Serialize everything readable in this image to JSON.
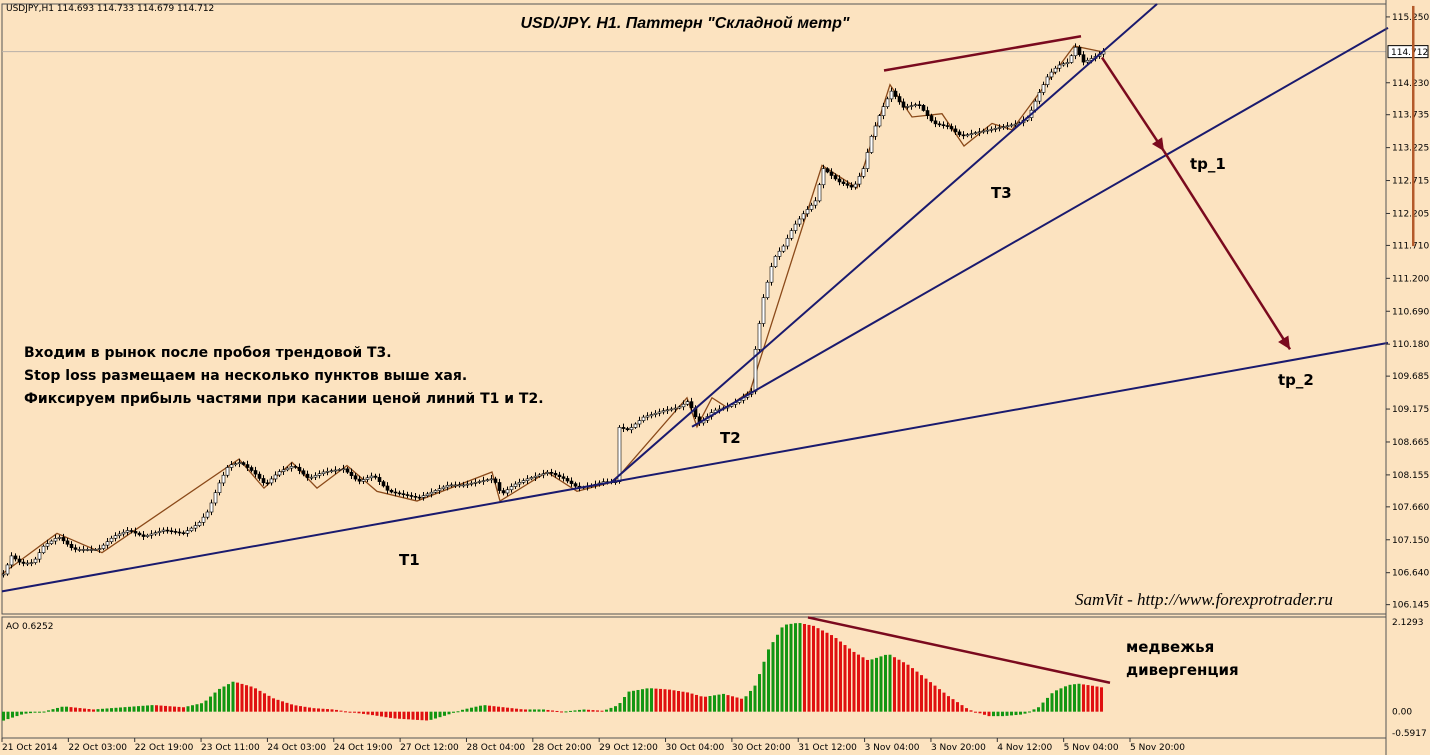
{
  "chart_data": {
    "type": "candlestick",
    "symbol_info": "USDJPY,H1  114.693 114.733 114.679 114.712",
    "title": "USD/JPY. H1. Паттерн \"Складной метр\"",
    "current_price": "114.712",
    "price_axis_labels": [
      "115.250",
      "114.230",
      "113.735",
      "113.225",
      "112.715",
      "112.205",
      "111.710",
      "111.200",
      "110.690",
      "110.180",
      "109.685",
      "109.175",
      "108.665",
      "108.155",
      "107.660",
      "107.150",
      "106.640",
      "106.145"
    ],
    "price_range": [
      106.0,
      115.45
    ],
    "time_axis_labels": [
      "21 Oct 2014",
      "22 Oct 03:00",
      "22 Oct 19:00",
      "23 Oct 11:00",
      "24 Oct 03:00",
      "24 Oct 19:00",
      "27 Oct 12:00",
      "28 Oct 04:00",
      "28 Oct 20:00",
      "29 Oct 12:00",
      "30 Oct 04:00",
      "30 Oct 20:00",
      "31 Oct 12:00",
      "3 Nov 04:00",
      "3 Nov 20:00",
      "4 Nov 12:00",
      "5 Nov 04:00",
      "5 Nov 20:00"
    ],
    "price_path": [
      [
        0,
        106.62
      ],
      [
        8,
        106.9
      ],
      [
        18,
        106.78
      ],
      [
        30,
        106.8
      ],
      [
        40,
        107.05
      ],
      [
        55,
        107.2
      ],
      [
        70,
        107.0
      ],
      [
        95,
        107.0
      ],
      [
        110,
        107.2
      ],
      [
        125,
        107.3
      ],
      [
        140,
        107.2
      ],
      [
        160,
        107.3
      ],
      [
        180,
        107.25
      ],
      [
        195,
        107.4
      ],
      [
        205,
        107.6
      ],
      [
        215,
        108.0
      ],
      [
        225,
        108.3
      ],
      [
        237,
        108.35
      ],
      [
        250,
        108.2
      ],
      [
        262,
        108.0
      ],
      [
        275,
        108.2
      ],
      [
        290,
        108.3
      ],
      [
        305,
        108.1
      ],
      [
        320,
        108.2
      ],
      [
        340,
        108.25
      ],
      [
        355,
        108.05
      ],
      [
        370,
        108.15
      ],
      [
        385,
        107.9
      ],
      [
        400,
        107.85
      ],
      [
        415,
        107.8
      ],
      [
        430,
        107.9
      ],
      [
        445,
        108.0
      ],
      [
        460,
        108.0
      ],
      [
        475,
        108.05
      ],
      [
        490,
        108.1
      ],
      [
        498,
        107.85
      ],
      [
        510,
        108.0
      ],
      [
        525,
        108.1
      ],
      [
        545,
        108.2
      ],
      [
        560,
        108.1
      ],
      [
        575,
        107.95
      ],
      [
        590,
        108.0
      ],
      [
        600,
        108.05
      ],
      [
        612,
        108.05
      ],
      [
        614,
        108.9
      ],
      [
        625,
        108.85
      ],
      [
        640,
        109.05
      ],
      [
        660,
        109.15
      ],
      [
        675,
        109.2
      ],
      [
        685,
        109.3
      ],
      [
        695,
        108.95
      ],
      [
        700,
        109.0
      ],
      [
        710,
        109.15
      ],
      [
        722,
        109.2
      ],
      [
        735,
        109.3
      ],
      [
        748,
        109.45
      ],
      [
        752,
        110.1
      ],
      [
        760,
        110.9
      ],
      [
        770,
        111.5
      ],
      [
        780,
        111.7
      ],
      [
        790,
        112.0
      ],
      [
        800,
        112.2
      ],
      [
        812,
        112.4
      ],
      [
        820,
        112.9
      ],
      [
        835,
        112.7
      ],
      [
        850,
        112.6
      ],
      [
        860,
        112.9
      ],
      [
        868,
        113.4
      ],
      [
        878,
        113.8
      ],
      [
        888,
        114.1
      ],
      [
        900,
        113.85
      ],
      [
        915,
        113.9
      ],
      [
        930,
        113.6
      ],
      [
        945,
        113.55
      ],
      [
        958,
        113.4
      ],
      [
        970,
        113.45
      ],
      [
        985,
        113.5
      ],
      [
        1000,
        113.55
      ],
      [
        1015,
        113.6
      ],
      [
        1025,
        113.7
      ],
      [
        1035,
        114.05
      ],
      [
        1045,
        114.35
      ],
      [
        1055,
        114.5
      ],
      [
        1065,
        114.55
      ],
      [
        1072,
        114.78
      ],
      [
        1080,
        114.55
      ],
      [
        1090,
        114.62
      ],
      [
        1100,
        114.71
      ]
    ],
    "zigzag": [
      [
        0,
        106.62
      ],
      [
        55,
        107.25
      ],
      [
        100,
        106.95
      ],
      [
        237,
        108.4
      ],
      [
        262,
        107.95
      ],
      [
        290,
        108.35
      ],
      [
        315,
        107.95
      ],
      [
        345,
        108.3
      ],
      [
        375,
        107.9
      ],
      [
        415,
        107.75
      ],
      [
        490,
        108.2
      ],
      [
        498,
        107.75
      ],
      [
        545,
        108.2
      ],
      [
        575,
        107.9
      ],
      [
        612,
        108.05
      ],
      [
        685,
        109.35
      ],
      [
        695,
        108.9
      ],
      [
        710,
        109.35
      ],
      [
        725,
        109.2
      ],
      [
        748,
        109.45
      ],
      [
        820,
        112.95
      ],
      [
        855,
        112.6
      ],
      [
        888,
        114.2
      ],
      [
        910,
        113.7
      ],
      [
        940,
        113.75
      ],
      [
        962,
        113.25
      ],
      [
        990,
        113.6
      ],
      [
        1010,
        113.5
      ],
      [
        1072,
        114.8
      ],
      [
        1100,
        114.71
      ]
    ],
    "trend_lines": {
      "T1": [
        [
          0,
          106.35
        ],
        [
          1386,
          110.2
        ]
      ],
      "T2": [
        [
          610,
          108.05
        ],
        [
          1155,
          115.45
        ]
      ],
      "T3": [
        [
          690,
          108.9
        ],
        [
          1386,
          115.08
        ]
      ],
      "resistance": [
        [
          882,
          114.42
        ],
        [
          1079,
          114.95
        ]
      ]
    },
    "arrows": [
      [
        [
          1100,
          114.62
        ],
        [
          1162,
          113.17
        ]
      ],
      [
        [
          1162,
          113.17
        ],
        [
          1288,
          110.1
        ]
      ]
    ],
    "labels": {
      "t1": "T1",
      "t2": "T2",
      "t3": "T3",
      "tp1": "tp_1",
      "tp2": "tp_2"
    },
    "notes": [
      "Входим в рынок после пробоя трендовой Т3.",
      "Stop loss размещаем на несколько пунктов выше хая.",
      "Фиксируем прибыль частями при касании ценой линий Т1 и Т2."
    ],
    "signature": "SamVit - http://www.forexprotrader.ru",
    "indicator": {
      "name": "AO 0.6252",
      "axis_labels": [
        "2.1293",
        "0.00",
        "-0.5917"
      ],
      "range": [
        -0.5917,
        2.1293
      ],
      "profile": [
        [
          0,
          -0.2
        ],
        [
          20,
          -0.05
        ],
        [
          40,
          0.0
        ],
        [
          60,
          0.12
        ],
        [
          90,
          0.05
        ],
        [
          120,
          0.1
        ],
        [
          150,
          0.15
        ],
        [
          180,
          0.1
        ],
        [
          200,
          0.2
        ],
        [
          215,
          0.5
        ],
        [
          230,
          0.68
        ],
        [
          250,
          0.55
        ],
        [
          270,
          0.3
        ],
        [
          290,
          0.15
        ],
        [
          310,
          0.08
        ],
        [
          330,
          0.05
        ],
        [
          350,
          -0.02
        ],
        [
          370,
          -0.08
        ],
        [
          390,
          -0.15
        ],
        [
          410,
          -0.18
        ],
        [
          425,
          -0.2
        ],
        [
          440,
          -0.1
        ],
        [
          460,
          0.05
        ],
        [
          480,
          0.15
        ],
        [
          500,
          0.1
        ],
        [
          520,
          0.05
        ],
        [
          540,
          0.05
        ],
        [
          560,
          0.0
        ],
        [
          580,
          0.05
        ],
        [
          600,
          0.02
        ],
        [
          615,
          0.15
        ],
        [
          625,
          0.45
        ],
        [
          645,
          0.53
        ],
        [
          665,
          0.5
        ],
        [
          685,
          0.43
        ],
        [
          700,
          0.33
        ],
        [
          720,
          0.4
        ],
        [
          740,
          0.28
        ],
        [
          752,
          0.6
        ],
        [
          765,
          1.4
        ],
        [
          780,
          1.95
        ],
        [
          795,
          2.0
        ],
        [
          810,
          1.93
        ],
        [
          830,
          1.7
        ],
        [
          850,
          1.35
        ],
        [
          865,
          1.15
        ],
        [
          885,
          1.3
        ],
        [
          905,
          1.05
        ],
        [
          925,
          0.7
        ],
        [
          945,
          0.35
        ],
        [
          965,
          0.05
        ],
        [
          985,
          -0.1
        ],
        [
          1000,
          -0.1
        ],
        [
          1020,
          -0.06
        ],
        [
          1035,
          0.1
        ],
        [
          1050,
          0.45
        ],
        [
          1065,
          0.6
        ],
        [
          1075,
          0.63
        ],
        [
          1090,
          0.58
        ],
        [
          1100,
          0.54
        ]
      ],
      "divergence_line": [
        [
          806,
          2.12
        ],
        [
          1108,
          0.65
        ]
      ],
      "note": [
        "медвежья",
        "дивергенция"
      ]
    },
    "colors": {
      "bg": "#fce3c0",
      "up": "#129612",
      "down": "#e01010",
      "line": "#1a1a6e",
      "zigzag": "#8b4a1a",
      "arrow": "#7a0a1e",
      "candle": "#000000"
    }
  }
}
